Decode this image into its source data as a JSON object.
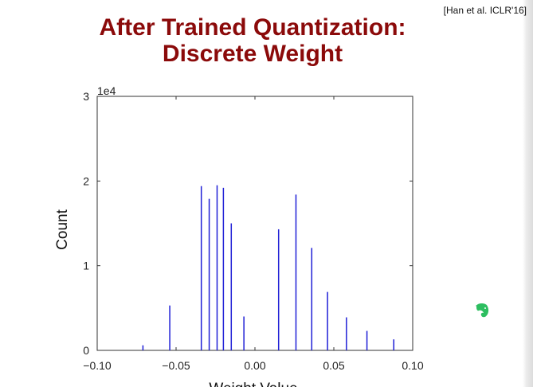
{
  "slide": {
    "citation": "[Han et al. ICLR'16]",
    "title_line1": "After Trained Quantization:",
    "title_line2": "Discrete Weight",
    "tray_icon": "evernote-elephant-icon"
  },
  "colors": {
    "title": "#8b0a0a",
    "bars": "#1f1fd6",
    "axes": "#333333",
    "app_icon": "#2dbe60"
  },
  "chart_data": {
    "type": "bar",
    "xlabel": "Weight Value",
    "ylabel": "Count",
    "y_offset_label": "1e4",
    "xlim": [
      -0.1,
      0.1
    ],
    "ylim": [
      0,
      3
    ],
    "x_ticks": [
      -0.1,
      -0.05,
      0.0,
      0.05,
      0.1
    ],
    "x_tick_labels": [
      "−0.10",
      "−0.05",
      "0.00",
      "0.05",
      "0.10"
    ],
    "y_ticks": [
      0,
      1,
      2,
      3
    ],
    "y_tick_labels": [
      "0",
      "1",
      "2",
      "3"
    ],
    "grid": false,
    "x": [
      -0.071,
      -0.054,
      -0.034,
      -0.029,
      -0.024,
      -0.02,
      -0.015,
      -0.007,
      0.015,
      0.026,
      0.036,
      0.046,
      0.058,
      0.071,
      0.088
    ],
    "values": [
      0.06,
      0.53,
      1.94,
      1.79,
      1.95,
      1.92,
      1.5,
      0.4,
      1.43,
      1.84,
      1.21,
      0.69,
      0.39,
      0.23,
      0.13
    ]
  }
}
